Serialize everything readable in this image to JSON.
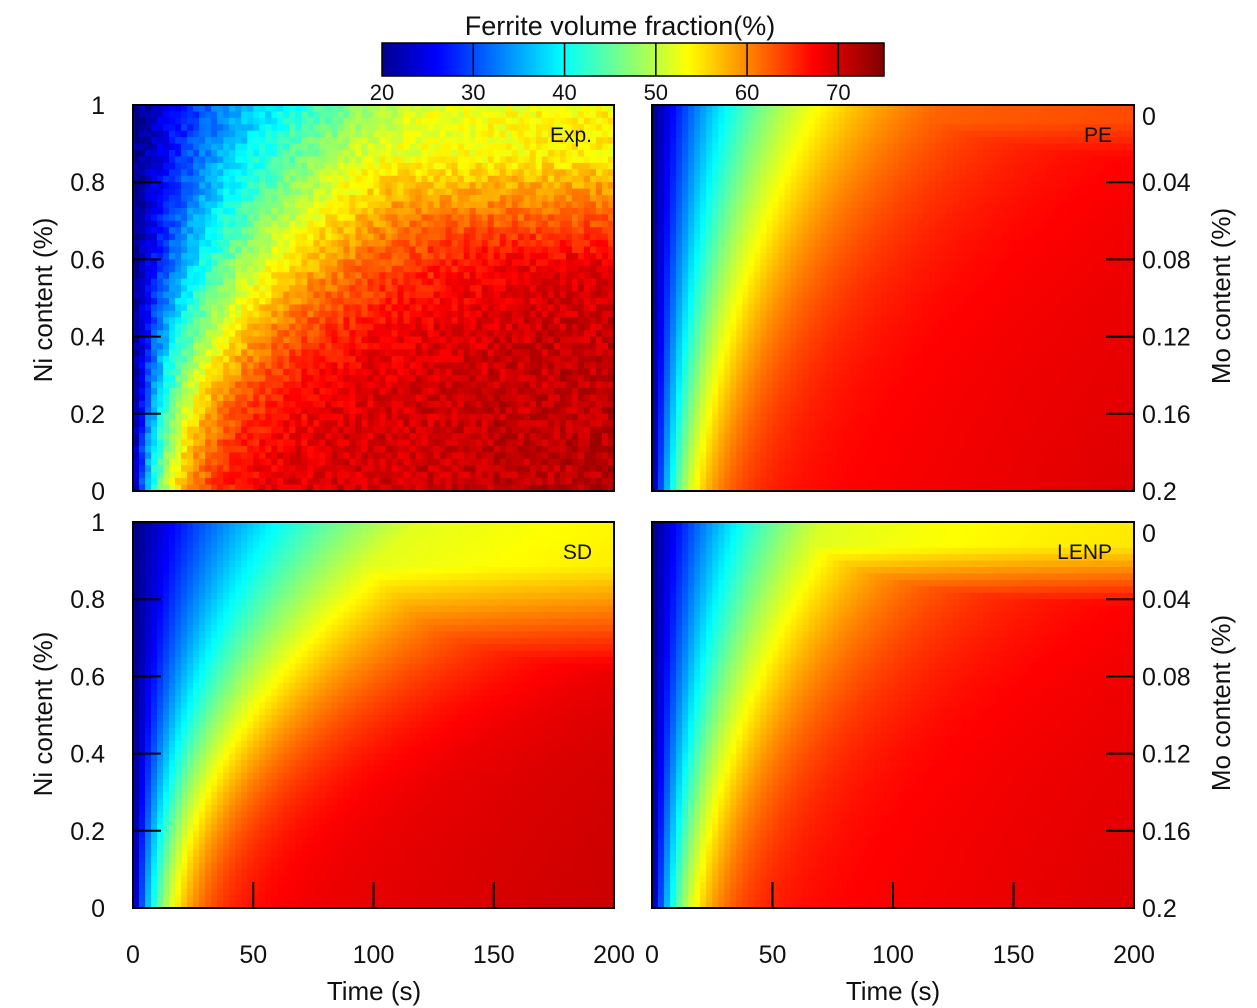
{
  "colorbar": {
    "title": "Ferrite volume fraction(%)",
    "min": 20,
    "max": 75,
    "ticks": [
      "20",
      "30",
      "40",
      "50",
      "60",
      "70"
    ]
  },
  "chart_data": [
    {
      "type": "heatmap",
      "label": "Exp.",
      "xlabel": "",
      "ylabel": "Ni content (%)",
      "xlim": [
        0,
        200
      ],
      "ylim": [
        0,
        1
      ],
      "xticks": [],
      "yticks": [
        "0",
        "0.2",
        "0.4",
        "0.6",
        "0.8",
        "1"
      ],
      "model": {
        "fmax": 69,
        "k": 1.0,
        "ybreak": 0.55,
        "plateau": 52,
        "edge": 0.0,
        "blocky": true
      }
    },
    {
      "type": "heatmap",
      "label": "PE",
      "xlabel": "",
      "ylabel": "Mo content (%)",
      "xlim": [
        0,
        200
      ],
      "ylim": [
        0,
        0.2
      ],
      "xticks": [],
      "yticks": [
        "0",
        "0.04",
        "0.08",
        "0.12",
        "0.16",
        "0.2"
      ],
      "model": {
        "fmax": 67,
        "k": 0.25,
        "ybreak": 0.85,
        "plateau": 62,
        "edge": 0.0,
        "blocky": false
      }
    },
    {
      "type": "heatmap",
      "label": "SD",
      "xlabel": "Time (s)",
      "ylabel": "Ni content (%)",
      "xlim": [
        0,
        200
      ],
      "ylim": [
        0,
        1
      ],
      "xticks": [
        "0",
        "50",
        "100",
        "150",
        "200"
      ],
      "yticks": [
        "0",
        "0.2",
        "0.4",
        "0.6",
        "0.8",
        "1"
      ],
      "model": {
        "fmax": 68,
        "k": 0.9,
        "ybreak": 0.6,
        "plateau": 52,
        "edge": 0.0,
        "blocky": false
      }
    },
    {
      "type": "heatmap",
      "label": "LENP",
      "xlabel": "Time (s)",
      "ylabel": "Mo content (%)",
      "xlim": [
        0,
        200
      ],
      "ylim": [
        0,
        0.2
      ],
      "xticks": [
        "0",
        "50",
        "100",
        "150",
        "200"
      ],
      "yticks": [
        "0",
        "0.04",
        "0.08",
        "0.12",
        "0.16",
        "0.2"
      ],
      "model": {
        "fmax": 67,
        "k": 0.35,
        "ybreak": 0.78,
        "plateau": 52,
        "edge": 0.0,
        "blocky": false
      }
    }
  ]
}
